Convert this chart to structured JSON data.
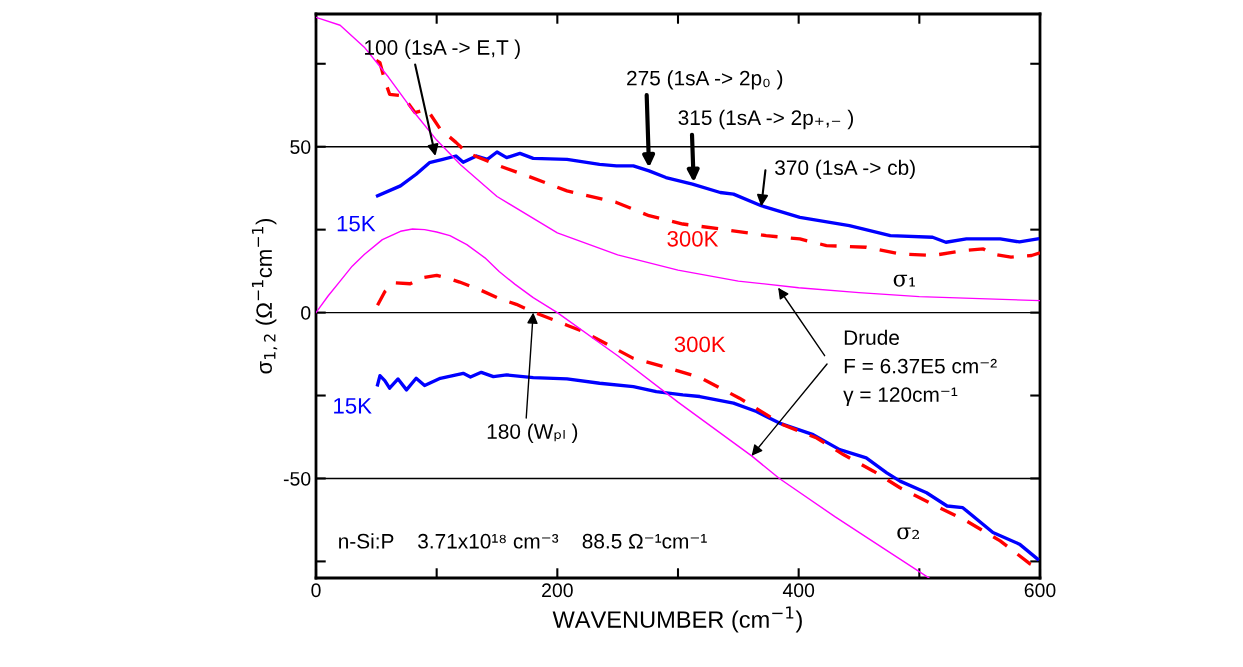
{
  "chart_data": {
    "type": "line",
    "xlabel": "WAVENUMBER (cm$^{−1}$)",
    "ylabel": "σ$_{1,2}$ (Ω$^{−1}$cm$^{−1}$)",
    "xlim": [
      0,
      600
    ],
    "ylim": [
      -80,
      90
    ],
    "xticks": [
      0,
      {
        "value": 100,
        "label": null
      },
      200,
      {
        "value": 300,
        "label": null
      },
      400,
      {
        "value": 500,
        "label": null
      },
      600
    ],
    "yticks": [
      {
        "value": -75,
        "label": null
      },
      -50,
      {
        "value": -25,
        "label": null
      },
      0,
      {
        "value": 25,
        "label": null
      },
      50,
      {
        "value": 75,
        "label": null
      }
    ],
    "grid": "y",
    "series": [
      {
        "name": "σ₁",
        "color": "#ff00ff",
        "line_style": "solid",
        "x": [
          0,
          20,
          40,
          60,
          80,
          100,
          120,
          150,
          200,
          250,
          300,
          350,
          400,
          450,
          500,
          550,
          600
        ],
        "values": [
          89,
          86.6,
          80,
          71,
          61,
          52,
          44.5,
          35,
          24,
          17.4,
          12.8,
          9.5,
          7.5,
          6,
          4.8,
          4.2,
          3.6
        ]
      },
      {
        "name": "σ₂",
        "color": "#ff00ff",
        "line_style": "solid",
        "x": [
          0,
          10,
          20,
          30,
          40,
          55,
          70,
          80,
          90,
          100,
          111,
          125,
          140,
          152,
          165,
          180,
          200,
          250,
          300,
          361,
          384,
          430,
          470,
          508
        ],
        "values": [
          0,
          5,
          9.5,
          14,
          17.5,
          22,
          24.5,
          25.2,
          25,
          24.3,
          23.2,
          20.5,
          16.5,
          12.3,
          8.5,
          4.5,
          0,
          -13,
          -27,
          -43.2,
          -50,
          -61.5,
          -71,
          -80
        ]
      },
      {
        "name": "15K",
        "color": "#0000ff",
        "line_style": "solid",
        "x": [
          51,
          70,
          83,
          94,
          105,
          116,
          122,
          133,
          142,
          150,
          158,
          169,
          180,
          208,
          235,
          249,
          263,
          276,
          290,
          312,
          335,
          346,
          369,
          401,
          442,
          476,
          511,
          522,
          539,
          567,
          583,
          598
        ],
        "values": [
          35.2,
          38.2,
          41.7,
          45.2,
          46.2,
          47.2,
          45.3,
          47.2,
          46.2,
          48.4,
          46.7,
          48,
          46.5,
          46.2,
          44.7,
          44.2,
          44.2,
          42.7,
          40.7,
          38.7,
          36.2,
          35.7,
          32.2,
          28.7,
          26.2,
          23.2,
          22.7,
          21.2,
          22.2,
          22.2,
          21.3,
          22.2
        ]
      },
      {
        "name": "300K",
        "color": "#ff0000",
        "line_style": "dashed",
        "x": [
          50,
          53,
          57,
          61,
          72,
          82,
          92,
          103,
          116,
          125,
          152,
          175,
          208,
          249,
          276,
          304,
          335,
          373,
          401,
          423,
          456,
          484,
          511,
          537,
          553,
          560,
          576,
          593,
          600
        ],
        "values": [
          76,
          75.3,
          70,
          65.8,
          65.3,
          60.3,
          61.3,
          55.3,
          51.3,
          48.2,
          44.2,
          41.2,
          36.7,
          33.2,
          29.2,
          26.7,
          25.2,
          23.2,
          22.2,
          20.2,
          19.7,
          17.7,
          17.2,
          18.7,
          19.2,
          17.7,
          16.7,
          17.2,
          18
        ]
      },
      {
        "name": "15K",
        "color": "#0000ff",
        "line_style": "solid",
        "x": [
          51,
          53,
          57,
          61,
          68,
          75,
          83,
          90,
          103,
          122,
          128,
          137,
          147,
          158,
          180,
          208,
          235,
          263,
          282,
          304,
          318,
          346,
          365,
          384,
          412,
          434,
          456,
          473,
          484,
          506,
          523,
          536,
          561,
          583,
          598
        ],
        "values": [
          -21.8,
          -19,
          -20.5,
          -22.8,
          -20,
          -23.3,
          -19.8,
          -22,
          -19.8,
          -18.3,
          -19.4,
          -18,
          -19.3,
          -18.8,
          -19.6,
          -20,
          -21.3,
          -22.3,
          -23.8,
          -24.8,
          -25.3,
          -27.3,
          -29.8,
          -33.3,
          -36.8,
          -41.3,
          -43.8,
          -48.3,
          -50.8,
          -54.3,
          -58.3,
          -58.8,
          -66.3,
          -69.8,
          -74.3
        ]
      },
      {
        "name": "300K",
        "color": "#ff0000",
        "line_style": "dashed",
        "x": [
          51,
          57,
          65,
          78,
          88,
          100,
          110,
          119,
          135,
          152,
          166,
          180,
          208,
          222,
          263,
          290,
          318,
          351,
          387,
          415,
          437,
          462,
          484,
          511,
          539,
          567,
          592,
          600
        ],
        "values": [
          2.2,
          6.3,
          9,
          8.7,
          10.5,
          11.2,
          10.3,
          9.2,
          7,
          4.2,
          2.5,
          0.2,
          -3.8,
          -5.8,
          -13.8,
          -16.5,
          -19.5,
          -25.8,
          -33.8,
          -37.8,
          -42.8,
          -47.8,
          -52.8,
          -57.8,
          -62.8,
          -68.8,
          -75.8,
          -77
        ]
      }
    ],
    "annotations": [
      {
        "text": "100 (1sA -> E,T )",
        "x": 99,
        "y": 47.2
      },
      {
        "text": "275 (1sA -> 2p₀ )",
        "x": 276,
        "y": 43.7
      },
      {
        "text": "315 (1sA -> 2p₊,₋ )",
        "x": 313,
        "y": 39.3
      },
      {
        "text": "370 (1sA -> cb)",
        "x": 369,
        "y": 32
      },
      {
        "text": "180 (Wₚₗ )",
        "x": 180,
        "y": 0
      },
      {
        "text": "Drude\nF = 6.37E5 cm⁻²\nγ = 120cm⁻¹",
        "x": 383,
        "y": 7.5
      },
      "n-Si:P    3.71x10¹⁸ cm⁻³    88.5 Ω⁻¹cm⁻¹"
    ]
  }
}
